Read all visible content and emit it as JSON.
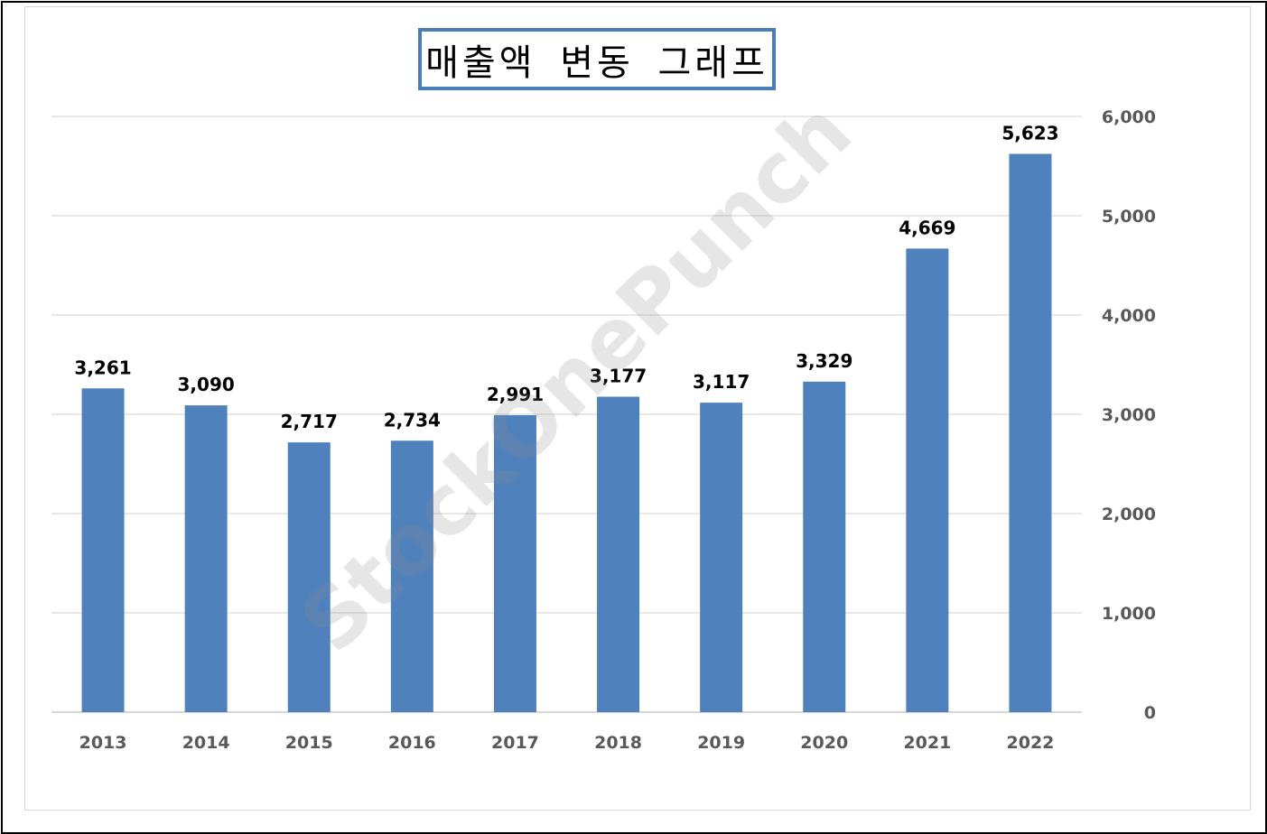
{
  "title": "매출액 변동 그래프",
  "watermark": "StockOnePunch",
  "chart_data": {
    "type": "bar",
    "title": "매출액 변동 그래프",
    "categories": [
      "2013",
      "2014",
      "2015",
      "2016",
      "2017",
      "2018",
      "2019",
      "2020",
      "2021",
      "2022"
    ],
    "values": [
      3261,
      3090,
      2717,
      2734,
      2991,
      3177,
      3117,
      3329,
      4669,
      5623
    ],
    "value_labels": [
      "3,261",
      "3,090",
      "2,717",
      "2,734",
      "2,991",
      "3,177",
      "3,117",
      "3,329",
      "4,669",
      "5,623"
    ],
    "y_ticks": [
      0,
      1000,
      2000,
      3000,
      4000,
      5000,
      6000
    ],
    "y_tick_labels": [
      "0",
      "1,000",
      "2,000",
      "3,000",
      "4,000",
      "5,000",
      "6,000"
    ],
    "ylim": [
      0,
      6000
    ],
    "y_axis_side": "right",
    "grid": true,
    "legend": "none",
    "bar_color": "#4f81bd"
  }
}
